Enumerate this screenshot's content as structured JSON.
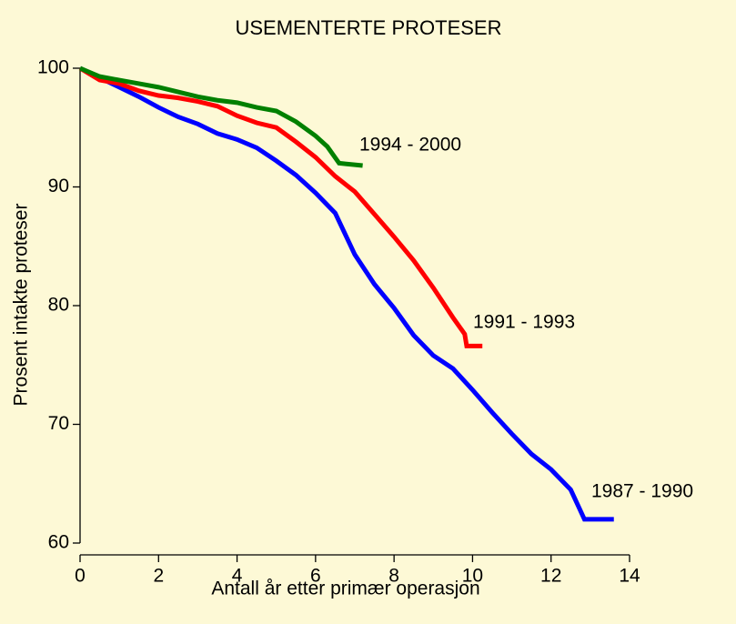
{
  "chart_data": {
    "type": "line",
    "title": "USEMENTERTE PROTESER",
    "xlabel": "Antall år etter primær operasjon",
    "ylabel": "Prosent intakte proteser",
    "xlim": [
      0,
      14
    ],
    "xticks": [
      0,
      2,
      4,
      6,
      8,
      10,
      12,
      14
    ],
    "ylim": [
      60,
      100
    ],
    "yticks": [
      60,
      70,
      80,
      90,
      100
    ],
    "series": [
      {
        "name": "1987 - 1990",
        "color": "#0000ff",
        "x": [
          0,
          0.5,
          1,
          1.5,
          2,
          2.5,
          3,
          3.5,
          4,
          4.5,
          5,
          5.5,
          6,
          6.5,
          7,
          7.5,
          8,
          8.5,
          9,
          9.5,
          10,
          10.5,
          11,
          11.5,
          12,
          12.5,
          12.85,
          13.6
        ],
        "values": [
          100,
          99.2,
          98.4,
          97.6,
          96.7,
          95.9,
          95.3,
          94.5,
          94,
          93.3,
          92.2,
          91,
          89.5,
          87.8,
          84.3,
          81.8,
          79.8,
          77.5,
          75.8,
          74.7,
          72.9,
          71,
          69.2,
          67.5,
          66.2,
          64.5,
          62,
          62
        ]
      },
      {
        "name": "1991 - 1993",
        "color": "#ff0000",
        "x": [
          0,
          0.5,
          1,
          1.5,
          2,
          2.5,
          3,
          3.5,
          4,
          4.5,
          5,
          5.5,
          6,
          6.5,
          7,
          7.5,
          8,
          8.5,
          9,
          9.5,
          9.8,
          9.85,
          10.25
        ],
        "values": [
          100,
          99,
          98.7,
          98.1,
          97.7,
          97.5,
          97.2,
          96.8,
          96,
          95.4,
          95,
          93.8,
          92.5,
          90.9,
          89.6,
          87.7,
          85.8,
          83.8,
          81.5,
          79,
          77.6,
          76.6,
          76.6
        ]
      },
      {
        "name": "1994 - 2000",
        "color": "#008000",
        "x": [
          0,
          0.5,
          1,
          1.5,
          2,
          2.5,
          3,
          3.5,
          4,
          4.5,
          5,
          5.5,
          6,
          6.3,
          6.6,
          7.2
        ],
        "values": [
          100,
          99.3,
          99,
          98.7,
          98.4,
          98,
          97.6,
          97.3,
          97.1,
          96.7,
          96.4,
          95.5,
          94.3,
          93.4,
          92,
          91.8
        ]
      }
    ]
  }
}
